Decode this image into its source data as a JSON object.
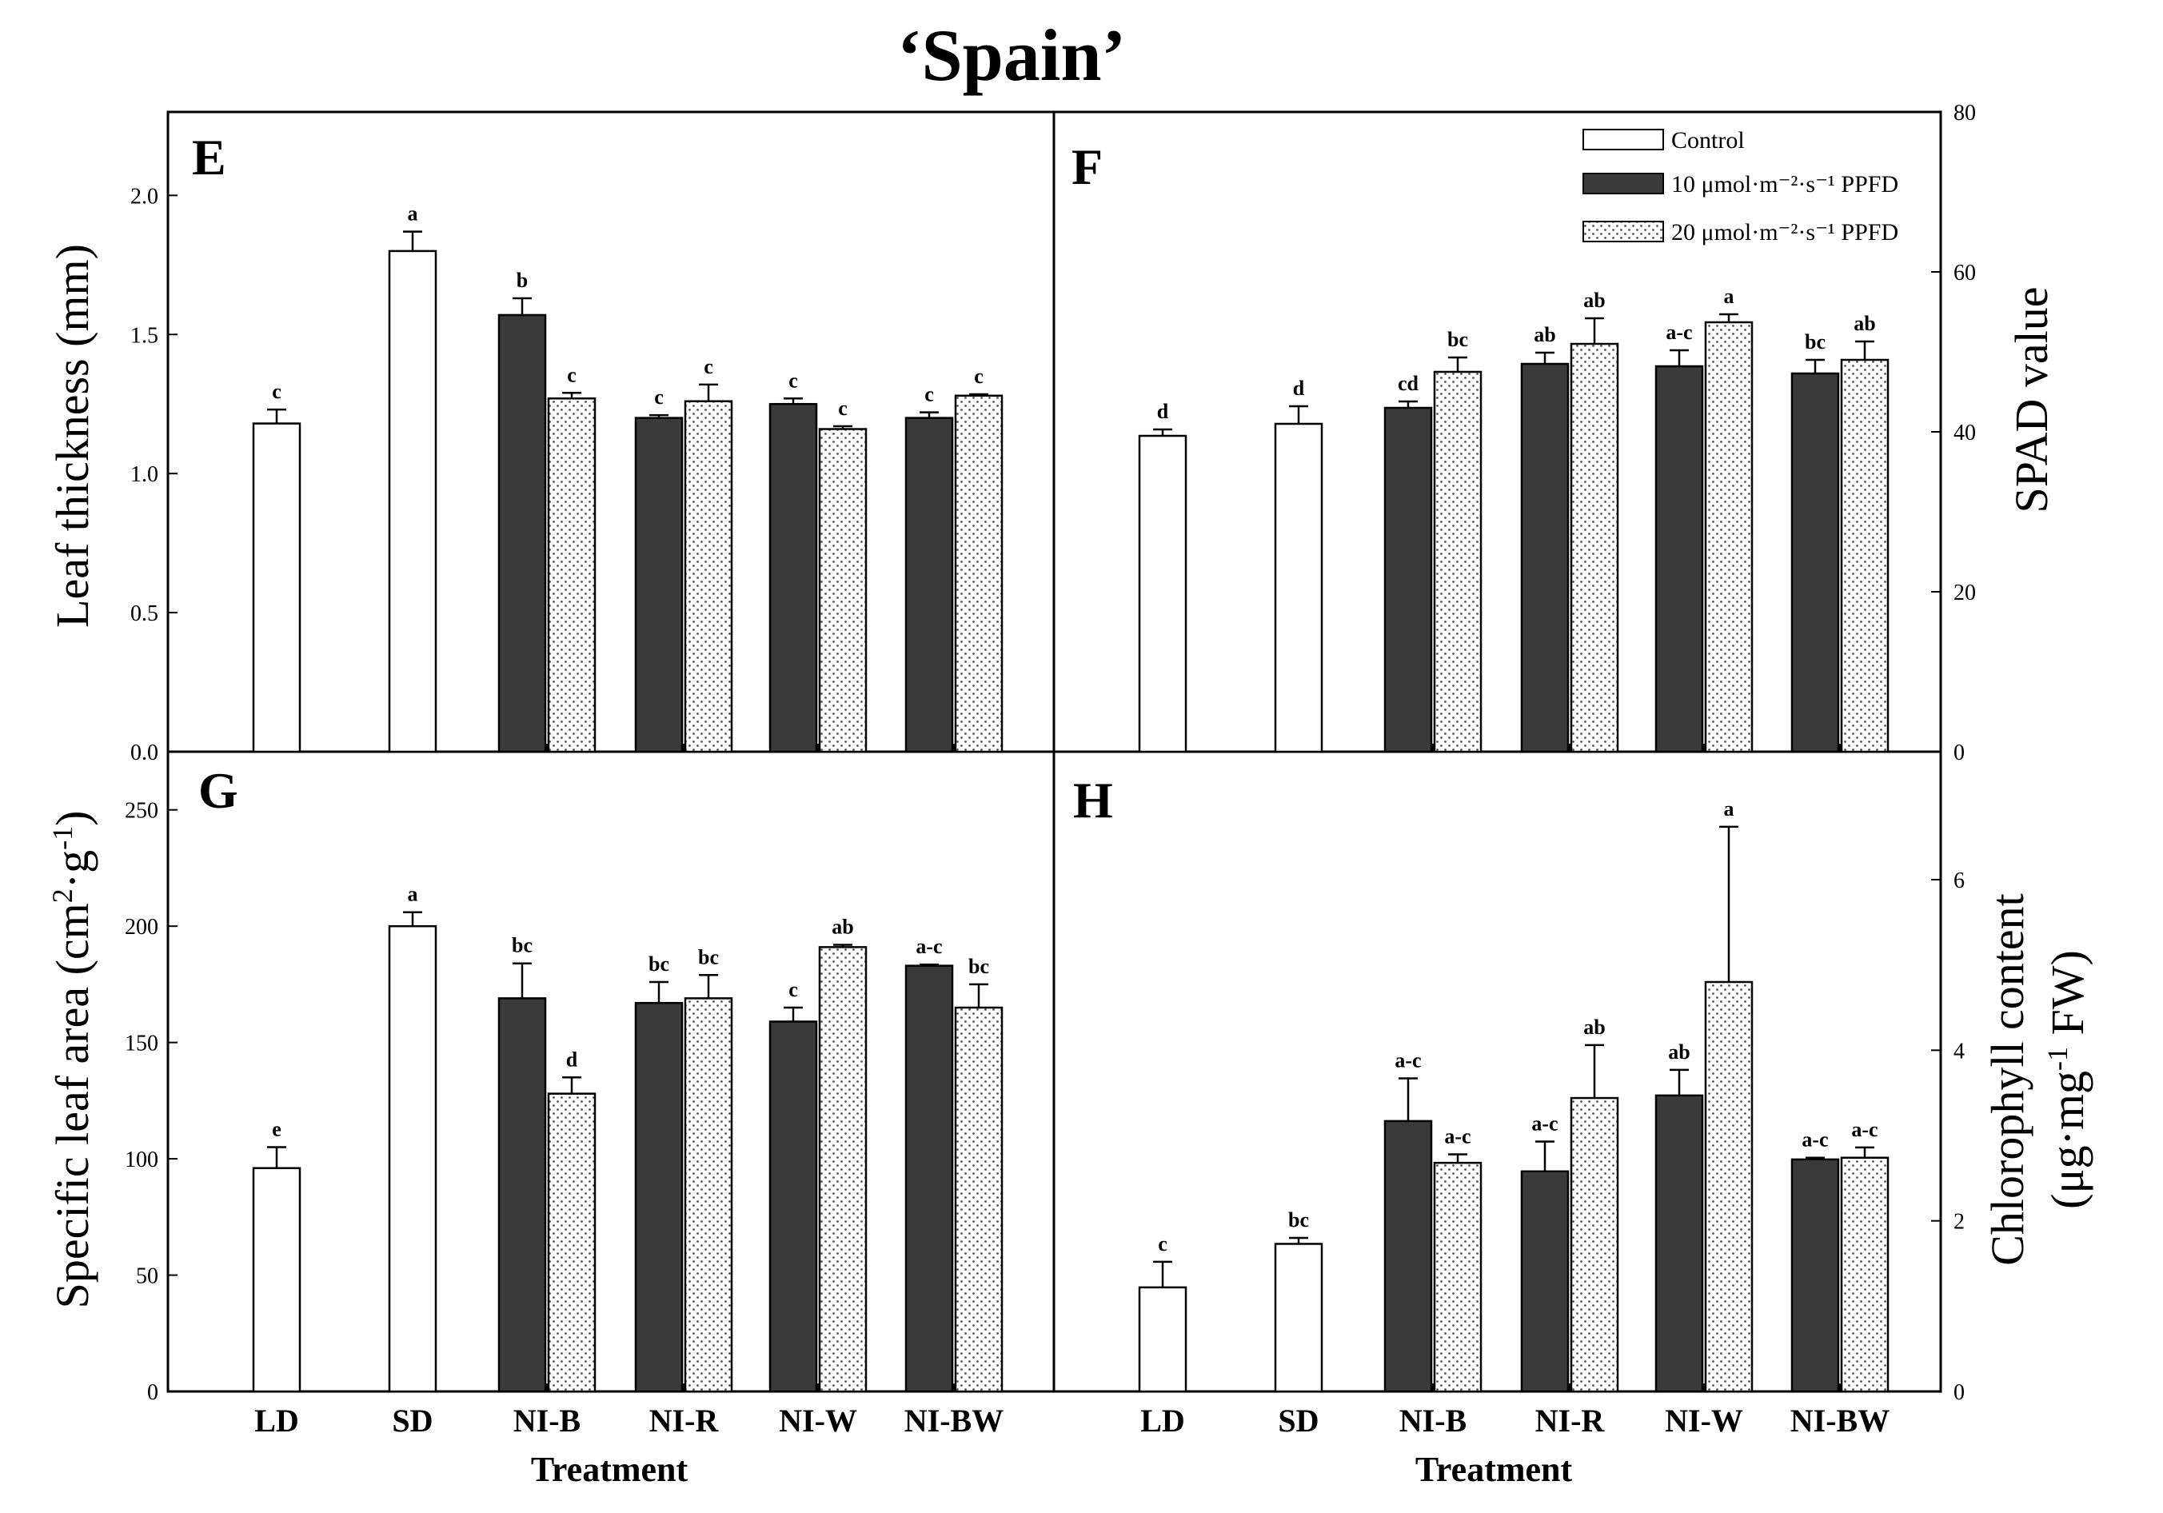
{
  "figure": {
    "title": "‘Spain’",
    "xlabel": "Treatment",
    "legend": {
      "position": "top-right",
      "items": [
        {
          "name": "Control",
          "fill": "open"
        },
        {
          "name": "10 μmol·m⁻²·s⁻¹ PPFD",
          "fill": "solid"
        },
        {
          "name": "20 μmol·m⁻²·s⁻¹ PPFD",
          "fill": "dotted"
        }
      ]
    }
  },
  "colors": {
    "dark_bar": "#3a3a3a",
    "dots": "#555555",
    "axis": "#000000",
    "background": "#ffffff"
  },
  "chart_data": [
    {
      "panel": "E",
      "type": "bar",
      "title": "",
      "xlabel": "Treatment",
      "ylabel": "Leaf thickness (mm)",
      "axis_side": "left",
      "ylim": [
        0,
        2.3
      ],
      "yticks": [
        0,
        0.5,
        1.0,
        1.5,
        2.0
      ],
      "yticklabels": [
        "0.0",
        "0.5",
        "1.0",
        "1.5",
        "2.0"
      ],
      "categories": [
        "LD",
        "SD",
        "NI-B",
        "NI-R",
        "NI-W",
        "NI-BW"
      ],
      "bars": [
        {
          "category": "LD",
          "series": "Control",
          "value": 1.18,
          "err": 0.05,
          "sig": "c"
        },
        {
          "category": "SD",
          "series": "Control",
          "value": 1.8,
          "err": 0.07,
          "sig": "a"
        },
        {
          "category": "NI-B",
          "series": "10",
          "value": 1.57,
          "err": 0.06,
          "sig": "b"
        },
        {
          "category": "NI-B",
          "series": "20",
          "value": 1.27,
          "err": 0.02,
          "sig": "c"
        },
        {
          "category": "NI-R",
          "series": "10",
          "value": 1.2,
          "err": 0.01,
          "sig": "c"
        },
        {
          "category": "NI-R",
          "series": "20",
          "value": 1.26,
          "err": 0.06,
          "sig": "c"
        },
        {
          "category": "NI-W",
          "series": "10",
          "value": 1.25,
          "err": 0.02,
          "sig": "c"
        },
        {
          "category": "NI-W",
          "series": "20",
          "value": 1.16,
          "err": 0.01,
          "sig": "c"
        },
        {
          "category": "NI-BW",
          "series": "10",
          "value": 1.2,
          "err": 0.02,
          "sig": "c"
        },
        {
          "category": "NI-BW",
          "series": "20",
          "value": 1.28,
          "err": 0.005,
          "sig": "c"
        }
      ]
    },
    {
      "panel": "F",
      "type": "bar",
      "title": "",
      "xlabel": "",
      "ylabel": "SPAD value",
      "axis_side": "right",
      "ylim": [
        0,
        80
      ],
      "yticks": [
        0,
        20,
        40,
        60,
        80
      ],
      "yticklabels": [
        "0",
        "20",
        "40",
        "60",
        "80"
      ],
      "categories": [
        "LD",
        "SD",
        "NI-B",
        "NI-R",
        "NI-W",
        "NI-BW"
      ],
      "bars": [
        {
          "category": "LD",
          "series": "Control",
          "value": 39.5,
          "err": 0.8,
          "sig": "d"
        },
        {
          "category": "SD",
          "series": "Control",
          "value": 41,
          "err": 2.2,
          "sig": "d"
        },
        {
          "category": "NI-B",
          "series": "10",
          "value": 43,
          "err": 0.8,
          "sig": "cd"
        },
        {
          "category": "NI-B",
          "series": "20",
          "value": 47.5,
          "err": 1.8,
          "sig": "bc"
        },
        {
          "category": "NI-R",
          "series": "10",
          "value": 48.5,
          "err": 1.4,
          "sig": "ab"
        },
        {
          "category": "NI-R",
          "series": "20",
          "value": 51,
          "err": 3.2,
          "sig": "ab"
        },
        {
          "category": "NI-W",
          "series": "10",
          "value": 48.2,
          "err": 2.0,
          "sig": "a-c"
        },
        {
          "category": "NI-W",
          "series": "20",
          "value": 53.7,
          "err": 1.0,
          "sig": "a"
        },
        {
          "category": "NI-BW",
          "series": "10",
          "value": 47.3,
          "err": 1.7,
          "sig": "bc"
        },
        {
          "category": "NI-BW",
          "series": "20",
          "value": 49,
          "err": 2.3,
          "sig": "ab"
        }
      ]
    },
    {
      "panel": "G",
      "type": "bar",
      "title": "",
      "xlabel": "Treatment",
      "ylabel": "Specific leaf area (cm²·g⁻¹)",
      "axis_side": "left",
      "ylim": [
        0,
        275
      ],
      "yticks": [
        0,
        50,
        100,
        150,
        200,
        250
      ],
      "yticklabels": [
        "0",
        "50",
        "100",
        "150",
        "200",
        "250"
      ],
      "categories": [
        "LD",
        "SD",
        "NI-B",
        "NI-R",
        "NI-W",
        "NI-BW"
      ],
      "bars": [
        {
          "category": "LD",
          "series": "Control",
          "value": 96,
          "err": 9,
          "sig": "e"
        },
        {
          "category": "SD",
          "series": "Control",
          "value": 200,
          "err": 6,
          "sig": "a"
        },
        {
          "category": "NI-B",
          "series": "10",
          "value": 169,
          "err": 15,
          "sig": "bc"
        },
        {
          "category": "NI-B",
          "series": "20",
          "value": 128,
          "err": 7,
          "sig": "d"
        },
        {
          "category": "NI-R",
          "series": "10",
          "value": 167,
          "err": 9,
          "sig": "bc"
        },
        {
          "category": "NI-R",
          "series": "20",
          "value": 169,
          "err": 10,
          "sig": "bc"
        },
        {
          "category": "NI-W",
          "series": "10",
          "value": 159,
          "err": 6,
          "sig": "c"
        },
        {
          "category": "NI-W",
          "series": "20",
          "value": 191,
          "err": 1,
          "sig": "ab"
        },
        {
          "category": "NI-BW",
          "series": "10",
          "value": 183,
          "err": 0.5,
          "sig": "a-c"
        },
        {
          "category": "NI-BW",
          "series": "20",
          "value": 165,
          "err": 10,
          "sig": "bc"
        }
      ]
    },
    {
      "panel": "H",
      "type": "bar",
      "title": "",
      "xlabel": "Treatment",
      "ylabel": "Chlorophyll content (μg·mg⁻¹ FW)",
      "axis_side": "right",
      "ylim": [
        0,
        7.5
      ],
      "yticks": [
        0,
        2,
        4,
        6
      ],
      "yticklabels": [
        "0",
        "2",
        "4",
        "6"
      ],
      "categories": [
        "LD",
        "SD",
        "NI-B",
        "NI-R",
        "NI-W",
        "NI-BW"
      ],
      "bars": [
        {
          "category": "LD",
          "series": "Control",
          "value": 1.22,
          "err": 0.3,
          "sig": "c"
        },
        {
          "category": "SD",
          "series": "Control",
          "value": 1.73,
          "err": 0.07,
          "sig": "bc"
        },
        {
          "category": "NI-B",
          "series": "10",
          "value": 3.17,
          "err": 0.5,
          "sig": "a-c"
        },
        {
          "category": "NI-B",
          "series": "20",
          "value": 2.68,
          "err": 0.1,
          "sig": "a-c"
        },
        {
          "category": "NI-R",
          "series": "10",
          "value": 2.58,
          "err": 0.35,
          "sig": "a-c"
        },
        {
          "category": "NI-R",
          "series": "20",
          "value": 3.44,
          "err": 0.62,
          "sig": "ab"
        },
        {
          "category": "NI-W",
          "series": "10",
          "value": 3.47,
          "err": 0.3,
          "sig": "ab"
        },
        {
          "category": "NI-W",
          "series": "20",
          "value": 4.8,
          "err": 1.82,
          "sig": "a"
        },
        {
          "category": "NI-BW",
          "series": "10",
          "value": 2.72,
          "err": 0.02,
          "sig": "a-c"
        },
        {
          "category": "NI-BW",
          "series": "20",
          "value": 2.74,
          "err": 0.12,
          "sig": "a-c"
        }
      ]
    }
  ]
}
